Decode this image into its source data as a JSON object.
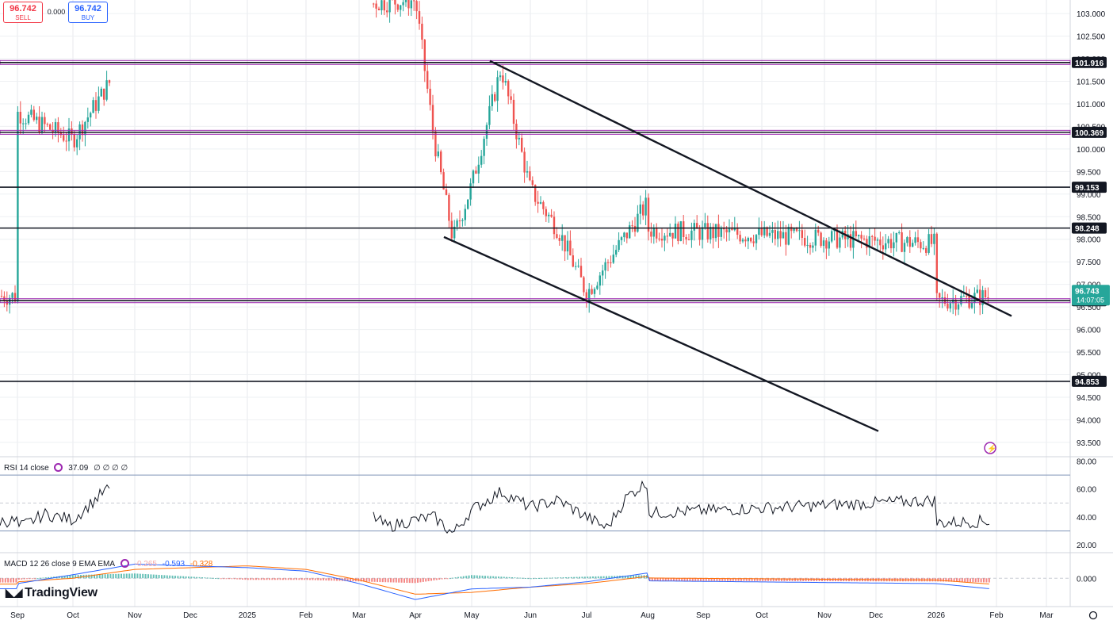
{
  "trade": {
    "sell_price": "96.742",
    "sell_label": "SELL",
    "buy_price": "96.742",
    "buy_label": "BUY",
    "spread": "0.000"
  },
  "logo": "TradingView",
  "chart_data": {
    "type": "candlestick",
    "x_labels": [
      "Sep",
      "Oct",
      "Nov",
      "Dec",
      "2025",
      "Feb",
      "Mar",
      "Apr",
      "May",
      "Jun",
      "Jul",
      "Aug",
      "Sep",
      "Oct",
      "Nov",
      "Dec",
      "2026",
      "Feb",
      "Mar"
    ],
    "price_ticks": [
      "103.000",
      "102.500",
      "102.000",
      "101.500",
      "101.000",
      "100.500",
      "100.000",
      "99.500",
      "99.000",
      "98.500",
      "98.000",
      "97.500",
      "97.000",
      "96.500",
      "96.000",
      "95.500",
      "95.000",
      "94.500",
      "94.000",
      "93.500"
    ],
    "ylim": [
      93.2,
      103.3
    ],
    "levels": [
      {
        "value": 101.916,
        "label": "101.916",
        "color": "#131722",
        "band": "#9c27b0"
      },
      {
        "value": 100.369,
        "label": "100.369",
        "color": "#131722",
        "band": "#9c27b0"
      },
      {
        "value": 99.153,
        "label": "99.153",
        "color": "#131722"
      },
      {
        "value": 98.248,
        "label": "98.248",
        "color": "#131722"
      },
      {
        "value": 96.639,
        "label": "96.639",
        "color": "#131722",
        "band": "#9c27b0"
      },
      {
        "value": 94.853,
        "label": "94.853",
        "color": "#131722"
      }
    ],
    "current_price": {
      "value": 96.743,
      "label": "96.743",
      "time": "14:07:05",
      "color": "#26a69a"
    },
    "trendlines": [
      {
        "from": [
          "May",
          101.95
        ],
        "to": [
          "Feb",
          96.3
        ]
      },
      {
        "from": [
          "Apr",
          98.05
        ],
        "to": [
          "Dec",
          93.75
        ]
      }
    ],
    "ohlc_path": [
      [
        "Sep",
        100.8
      ],
      [
        "Oct",
        100.2
      ],
      [
        "Oct",
        102.9
      ],
      [
        "Oct",
        103.6
      ],
      [
        "Feb",
        103.5
      ],
      [
        "Mar",
        103.2
      ],
      [
        "Apr",
        103.3
      ],
      [
        "Apr",
        100.2
      ],
      [
        "Apr",
        98.0
      ],
      [
        "May",
        99.2
      ],
      [
        "May",
        101.8
      ],
      [
        "Jun",
        99.1
      ],
      [
        "Jun",
        98.2
      ],
      [
        "Jul",
        96.8
      ],
      [
        "Aug",
        98.8
      ],
      [
        "Aug",
        100.1
      ],
      [
        "Aug",
        98.5
      ],
      [
        "Sep",
        98.2
      ],
      [
        "Sep",
        96.5
      ],
      [
        "Oct",
        98.3
      ],
      [
        "Oct",
        99.2
      ],
      [
        "Nov",
        100.1
      ],
      [
        "Nov",
        99.0
      ],
      [
        "Nov",
        100.3
      ],
      [
        "Dec",
        99.1
      ],
      [
        "Dec",
        98.3
      ],
      [
        "Jan",
        97.9
      ],
      [
        "Jan",
        98.8
      ],
      [
        "Jan",
        99.4
      ],
      [
        "Jan",
        98.8
      ],
      [
        "Feb",
        97.6
      ],
      [
        "Feb",
        95.7
      ],
      [
        "Feb",
        96.74
      ]
    ],
    "rsi": {
      "label": "RSI 14 close",
      "value": "37.09",
      "extra": "∅ ∅ ∅ ∅",
      "ticks": [
        "80.00",
        "60.00",
        "40.00",
        "20.00"
      ],
      "ylim": [
        15,
        82
      ],
      "bands": [
        70,
        50,
        30
      ],
      "path": [
        [
          "Sep",
          32
        ],
        [
          "Sep",
          42
        ],
        [
          "Oct",
          38
        ],
        [
          "Oct",
          58
        ],
        [
          "Nov",
          70
        ],
        [
          "Nov",
          60
        ],
        [
          "Dec",
          68
        ],
        [
          "Dec",
          55
        ],
        [
          "2025",
          65
        ],
        [
          "2025",
          70
        ],
        [
          "Feb",
          62
        ],
        [
          "Mar",
          48
        ],
        [
          "Mar",
          33
        ],
        [
          "Apr",
          38
        ],
        [
          "Apr",
          40
        ],
        [
          "Apr",
          28
        ],
        [
          "May",
          45
        ],
        [
          "May",
          58
        ],
        [
          "Jun",
          47
        ],
        [
          "Jun",
          52
        ],
        [
          "Jul",
          40
        ],
        [
          "Jul",
          32
        ],
        [
          "Jul",
          55
        ],
        [
          "Aug",
          65
        ],
        [
          "Aug",
          52
        ],
        [
          "Sep",
          55
        ],
        [
          "Sep",
          40
        ],
        [
          "Sep",
          60
        ],
        [
          "Oct",
          62
        ],
        [
          "Oct",
          55
        ],
        [
          "Nov",
          70
        ],
        [
          "Nov",
          58
        ],
        [
          "Dec",
          48
        ],
        [
          "Dec",
          40
        ],
        [
          "2026",
          52
        ],
        [
          "2026",
          60
        ],
        [
          "Feb",
          42
        ],
        [
          "Feb",
          25
        ],
        [
          "Feb",
          37.09
        ]
      ]
    },
    "macd": {
      "label": "MACD 12 26 close 9 EMA EMA",
      "hist": "-0.265",
      "macd": "-0.593",
      "signal": "-0.328",
      "ticks": [
        "0.000"
      ],
      "ylim": [
        -1.6,
        1.4
      ],
      "macd_path": [
        [
          "Sep",
          -0.3
        ],
        [
          "Oct",
          0.2
        ],
        [
          "Nov",
          0.8
        ],
        [
          "2025",
          0.6
        ],
        [
          "Feb",
          0.4
        ],
        [
          "Mar",
          -0.3
        ],
        [
          "Apr",
          -1.2
        ],
        [
          "May",
          -0.6
        ],
        [
          "Jun",
          -0.5
        ],
        [
          "Jul",
          -0.2
        ],
        [
          "Aug",
          0.3
        ],
        [
          "Sep",
          0.1
        ],
        [
          "Oct",
          0.3
        ],
        [
          "Nov",
          0.4
        ],
        [
          "Dec",
          0.1
        ],
        [
          "2026",
          -0.3
        ],
        [
          "Feb",
          -0.593
        ]
      ],
      "signal_path": [
        [
          "Sep",
          -0.2
        ],
        [
          "Oct",
          0.0
        ],
        [
          "Nov",
          0.5
        ],
        [
          "2025",
          0.7
        ],
        [
          "Feb",
          0.5
        ],
        [
          "Mar",
          -0.1
        ],
        [
          "Apr",
          -0.9
        ],
        [
          "May",
          -0.8
        ],
        [
          "Jun",
          -0.5
        ],
        [
          "Jul",
          -0.3
        ],
        [
          "Aug",
          0.1
        ],
        [
          "Sep",
          0.2
        ],
        [
          "Oct",
          0.2
        ],
        [
          "Nov",
          0.4
        ],
        [
          "Dec",
          0.2
        ],
        [
          "2026",
          -0.1
        ],
        [
          "Feb",
          -0.328
        ]
      ]
    }
  }
}
